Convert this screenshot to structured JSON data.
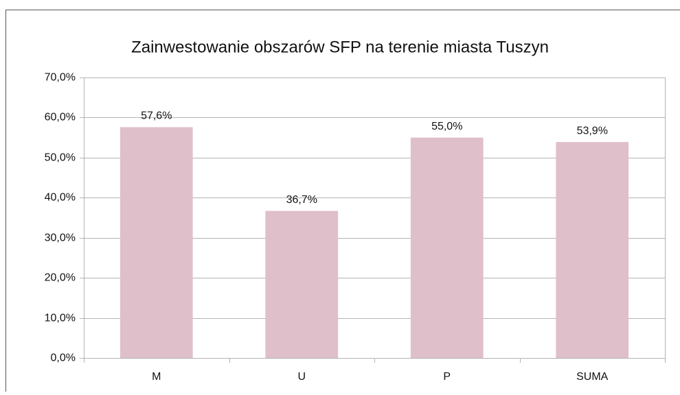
{
  "chart_data": {
    "type": "bar",
    "title": "Zainwestowanie obszarów SFP na terenie miasta Tuszyn",
    "categories": [
      "M",
      "U",
      "P",
      "SUMA"
    ],
    "values": [
      57.6,
      36.7,
      55.0,
      53.9
    ],
    "value_labels": [
      "57,6%",
      "36,7%",
      "55,0%",
      "53,9%"
    ],
    "color": "#dfbfca",
    "ylim": [
      0,
      70
    ],
    "yticks": [
      {
        "value": 0,
        "label": "0,0%"
      },
      {
        "value": 10,
        "label": "10,0%"
      },
      {
        "value": 20,
        "label": "20,0%"
      },
      {
        "value": 30,
        "label": "30,0%"
      },
      {
        "value": 40,
        "label": "40,0%"
      },
      {
        "value": 50,
        "label": "50,0%"
      },
      {
        "value": 60,
        "label": "60,0%"
      },
      {
        "value": 70,
        "label": "70,0%"
      }
    ],
    "grid": true
  }
}
